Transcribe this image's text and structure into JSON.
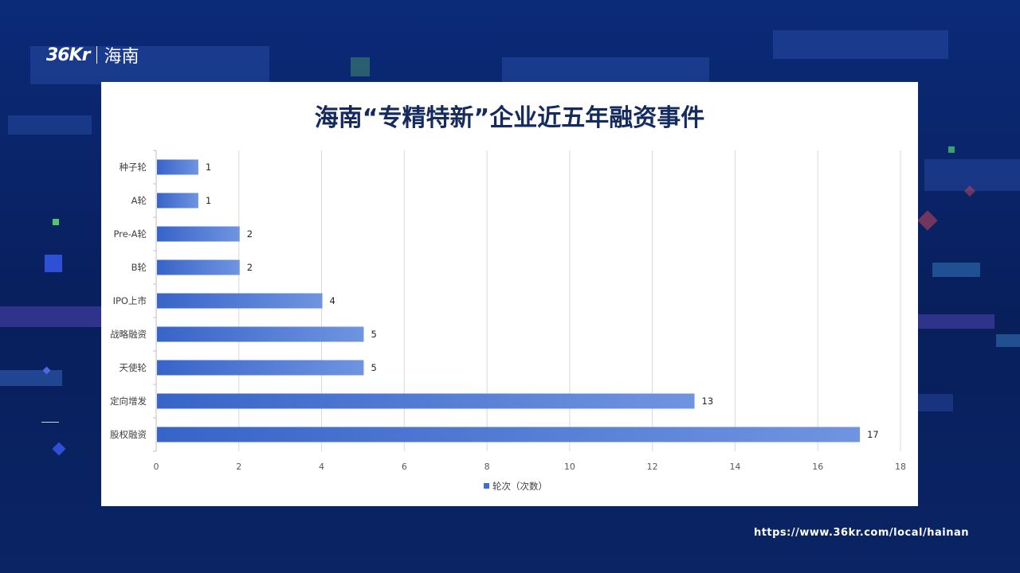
{
  "logo": {
    "brand": "36Kr",
    "region": "海南"
  },
  "footer": {
    "url": "https://www.36kr.com/local/hainan"
  },
  "colors": {
    "bar": "#3d6fd0",
    "bar_light": "#6f94e0",
    "title": "#152b5e",
    "background": "#0b2a78"
  },
  "chart_data": {
    "type": "bar",
    "orientation": "horizontal",
    "title": "海南“专精特新”企业近五年融资事件",
    "categories": [
      "种子轮",
      "A轮",
      "Pre-A轮",
      "B轮",
      "IPO上市",
      "战略融资",
      "天使轮",
      "定向增发",
      "股权融资"
    ],
    "series": [
      {
        "name": "轮次（次数）",
        "values": [
          1,
          1,
          2,
          2,
          4,
          5,
          5,
          13,
          17
        ]
      }
    ],
    "xlim": [
      0,
      18
    ],
    "xticks": [
      0,
      2,
      4,
      6,
      8,
      10,
      12,
      14,
      16,
      18
    ],
    "grid": true,
    "data_labels": true,
    "legend": "bottom"
  }
}
